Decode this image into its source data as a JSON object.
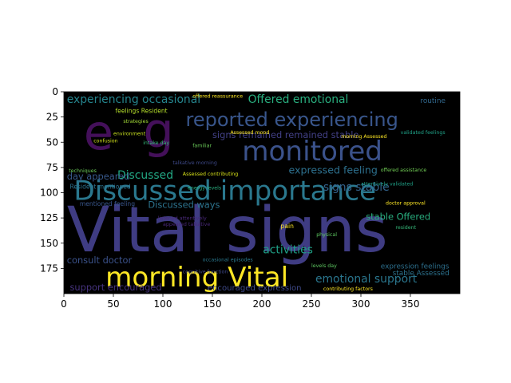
{
  "chart_data": {
    "type": "wordcloud",
    "title": "",
    "xlabel": "",
    "ylabel": "",
    "xlim": [
      0,
      400
    ],
    "ylim": [
      200,
      0
    ],
    "x_ticks": [
      0,
      50,
      100,
      150,
      200,
      250,
      300,
      350
    ],
    "y_ticks": [
      0,
      25,
      50,
      75,
      100,
      125,
      150,
      175
    ],
    "background": "#000000",
    "words": [
      {
        "text": "Vital signs",
        "x": 3,
        "y": 158,
        "size": 62,
        "color": "#3f3c83"
      },
      {
        "text": "e",
        "x": 20,
        "y": 57,
        "size": 48,
        "color": "#44105a"
      },
      {
        "text": "g",
        "x": 80,
        "y": 55,
        "size": 48,
        "color": "#44105a"
      },
      {
        "text": "Discussed importance",
        "x": 10,
        "y": 107,
        "size": 27,
        "color": "#2a788e"
      },
      {
        "text": "monitored",
        "x": 180,
        "y": 68,
        "size": 27,
        "color": "#3b528b"
      },
      {
        "text": "reported experiencing",
        "x": 123,
        "y": 34,
        "size": 19,
        "color": "#39568c"
      },
      {
        "text": "morning Vital",
        "x": 42,
        "y": 193,
        "size": 27,
        "color": "#fde725"
      },
      {
        "text": "experiencing occasional",
        "x": 3,
        "y": 11,
        "size": 11,
        "color": "#25858e"
      },
      {
        "text": "Offered emotional",
        "x": 186,
        "y": 11,
        "size": 11,
        "color": "#29af7f"
      },
      {
        "text": "signs remained remained stable",
        "x": 150,
        "y": 46,
        "size": 9,
        "color": "#424086"
      },
      {
        "text": "expressed feeling",
        "x": 227,
        "y": 81,
        "size": 10,
        "color": "#2d708e"
      },
      {
        "text": "Discussed",
        "x": 54,
        "y": 86,
        "size": 11,
        "color": "#22a884"
      },
      {
        "text": "signs stable",
        "x": 262,
        "y": 98,
        "size": 11,
        "color": "#33638d"
      },
      {
        "text": "activities",
        "x": 201,
        "y": 160,
        "size": 11,
        "color": "#1fa187"
      },
      {
        "text": "emotional support",
        "x": 254,
        "y": 189,
        "size": 11,
        "color": "#2a768e"
      },
      {
        "text": "day appeared",
        "x": 3,
        "y": 87,
        "size": 9,
        "color": "#38598c"
      },
      {
        "text": "Resident mentioned",
        "x": 6,
        "y": 96,
        "size": 6,
        "color": "#2c738e"
      },
      {
        "text": "mentioned feeling",
        "x": 16,
        "y": 113,
        "size": 6,
        "color": "#39568c"
      },
      {
        "text": "Discussed ways",
        "x": 85,
        "y": 115,
        "size": 9,
        "color": "#2c738e"
      },
      {
        "text": "stable Offered",
        "x": 305,
        "y": 127,
        "size": 9,
        "color": "#29af7f"
      },
      {
        "text": "consult doctor",
        "x": 3,
        "y": 170,
        "size": 9,
        "color": "#3b528b"
      },
      {
        "text": "support encouraged",
        "x": 6,
        "y": 197,
        "size": 9,
        "color": "#46337e"
      },
      {
        "text": "encouraged expression",
        "x": 145,
        "y": 197,
        "size": 8,
        "color": "#3e4989"
      },
      {
        "text": "expression feelings",
        "x": 320,
        "y": 175,
        "size": 7,
        "color": "#2d708e"
      },
      {
        "text": "stable Assessed",
        "x": 332,
        "y": 182,
        "size": 7,
        "color": "#2c728e"
      },
      {
        "text": "routine",
        "x": 360,
        "y": 11,
        "size": 7,
        "color": "#31688e"
      },
      {
        "text": "feelings Resident",
        "x": 52,
        "y": 21,
        "size": 6,
        "color": "#b5de2b"
      },
      {
        "text": "strategies",
        "x": 60,
        "y": 31,
        "size": 5,
        "color": "#a2da37"
      },
      {
        "text": "Assessed mood",
        "x": 168,
        "y": 42,
        "size": 5,
        "color": "#fde725"
      },
      {
        "text": "confusion",
        "x": 30,
        "y": 50,
        "size": 5,
        "color": "#d2e21b"
      },
      {
        "text": "intake day",
        "x": 80,
        "y": 52,
        "size": 5,
        "color": "#35b779"
      },
      {
        "text": "familiar",
        "x": 130,
        "y": 55,
        "size": 5,
        "color": "#6ccd5a"
      },
      {
        "text": "talkative morning",
        "x": 110,
        "y": 72,
        "size": 5,
        "color": "#3e4989"
      },
      {
        "text": "Assessed contributing",
        "x": 120,
        "y": 83,
        "size": 5,
        "color": "#d8e219"
      },
      {
        "text": "energy levels",
        "x": 125,
        "y": 97,
        "size": 5,
        "color": "#29af7f"
      },
      {
        "text": "occasional episodes",
        "x": 140,
        "y": 168,
        "size": 5,
        "color": "#2a788e"
      },
      {
        "text": "cognitive function",
        "x": 120,
        "y": 180,
        "size": 5,
        "color": "#3e4989"
      },
      {
        "text": "levels day",
        "x": 250,
        "y": 174,
        "size": 5,
        "color": "#5ec962"
      },
      {
        "text": "contributing factors",
        "x": 262,
        "y": 197,
        "size": 5,
        "color": "#fde725"
      },
      {
        "text": "offered reassurance",
        "x": 130,
        "y": 6,
        "size": 5,
        "color": "#fde725"
      },
      {
        "text": "validated feelings",
        "x": 340,
        "y": 42,
        "size": 5,
        "color": "#1fa187"
      },
      {
        "text": "doctor approval",
        "x": 325,
        "y": 112,
        "size": 5,
        "color": "#fde725"
      },
      {
        "text": "resident",
        "x": 335,
        "y": 136,
        "size": 5,
        "color": "#35b779"
      },
      {
        "text": "physical",
        "x": 255,
        "y": 143,
        "size": 5,
        "color": "#5ec962"
      },
      {
        "text": "pain",
        "x": 219,
        "y": 135,
        "size": 6,
        "color": "#fde725"
      },
      {
        "text": "morning Assessed",
        "x": 280,
        "y": 46,
        "size": 5,
        "color": "#fde725"
      },
      {
        "text": "environment",
        "x": 50,
        "y": 43,
        "size": 5,
        "color": "#c8e020"
      },
      {
        "text": "techniques",
        "x": 5,
        "y": 80,
        "size": 5,
        "color": "#6ccd5a"
      },
      {
        "text": "attentively validated",
        "x": 300,
        "y": 93,
        "size": 5,
        "color": "#1fa187"
      },
      {
        "text": "listened attentively",
        "x": 95,
        "y": 127,
        "size": 5,
        "color": "#482878"
      },
      {
        "text": "appeared talkative",
        "x": 100,
        "y": 133,
        "size": 5,
        "color": "#482878"
      },
      {
        "text": "offered assistance",
        "x": 320,
        "y": 79,
        "size": 5,
        "color": "#73d056"
      }
    ]
  }
}
